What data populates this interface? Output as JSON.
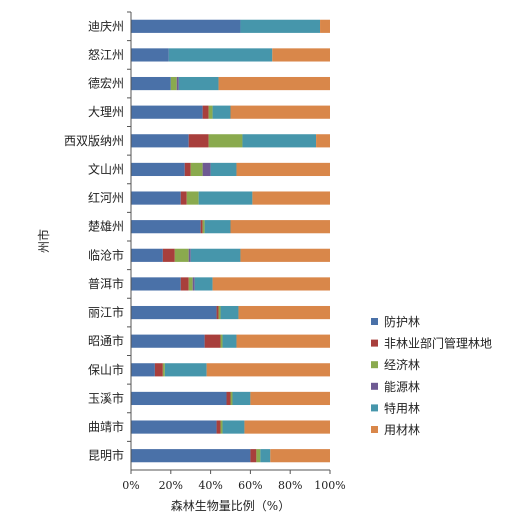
{
  "chart_data": {
    "type": "bar",
    "orientation": "horizontal",
    "stacked": true,
    "percent": true,
    "xlabel": "森林生物量比例（%）",
    "ylabel": "州市",
    "xlim": [
      0,
      100
    ],
    "x_ticks": [
      "0%",
      "20%",
      "40%",
      "60%",
      "80%",
      "100%"
    ],
    "grid": false,
    "legend_position": "right",
    "categories": [
      "迪庆州",
      "怒江州",
      "德宏州",
      "大理州",
      "西双版纳州",
      "文山州",
      "红河州",
      "楚雄州",
      "临沧市",
      "普洱市",
      "丽江市",
      "昭通市",
      "保山市",
      "玉溪市",
      "曲靖市",
      "昆明市"
    ],
    "series": [
      {
        "name": "防护林",
        "color": "#4a71a8",
        "values": [
          55,
          19,
          20,
          36,
          29,
          27,
          25,
          35,
          16,
          25,
          43,
          37,
          12,
          48,
          43,
          60
        ]
      },
      {
        "name": "非林业部门管理林地",
        "color": "#a83f3c",
        "values": [
          0,
          0,
          0,
          3,
          10,
          3,
          3,
          1,
          6,
          4,
          1,
          8,
          4,
          2,
          2,
          3
        ]
      },
      {
        "name": "经济林",
        "color": "#8aaa4e",
        "values": [
          0,
          0,
          3,
          2,
          17,
          6,
          6,
          1,
          7,
          2,
          1,
          1,
          1,
          1,
          1,
          2
        ]
      },
      {
        "name": "能源林",
        "color": "#6e5a93",
        "values": [
          0,
          0,
          1,
          0,
          0,
          4,
          0,
          0,
          1,
          1,
          0,
          0,
          0,
          0,
          0,
          0
        ]
      },
      {
        "name": "特用林",
        "color": "#4696ab",
        "values": [
          40,
          52,
          20,
          9,
          37,
          13,
          27,
          13,
          25,
          9,
          9,
          7,
          21,
          9,
          11,
          5
        ]
      },
      {
        "name": "用材林",
        "color": "#d9874a",
        "values": [
          5,
          29,
          56,
          50,
          7,
          47,
          39,
          50,
          45,
          59,
          46,
          47,
          62,
          40,
          43,
          30
        ]
      }
    ]
  }
}
